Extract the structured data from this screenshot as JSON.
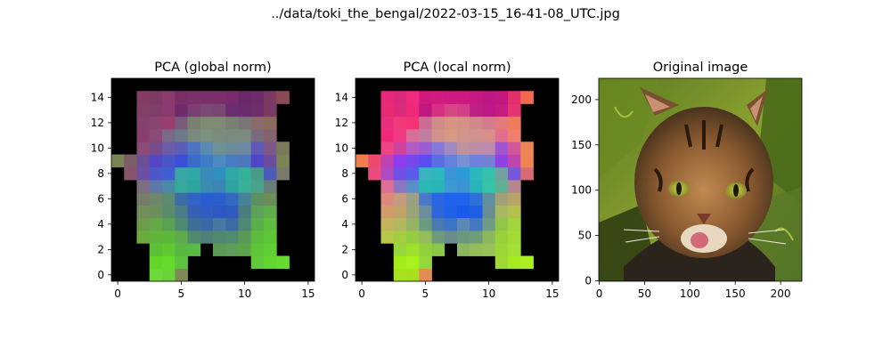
{
  "suptitle": "../data/toki_the_bengal/2022-03-15_16-41-08_UTC.jpg",
  "chart_data": [
    {
      "type": "heatmap",
      "title": "PCA (global norm)",
      "grid": false,
      "xlim": [
        -0.5,
        15.5
      ],
      "ylim": [
        15.5,
        -0.5
      ],
      "xticks": [
        0,
        5,
        10,
        15
      ],
      "yticks": [
        0,
        2,
        4,
        6,
        8,
        10,
        12,
        14
      ],
      "background_color": "#000000",
      "cells": [
        {
          "row": 1,
          "cols": [
            3,
            4,
            5
          ],
          "colors": [
            "#6fd83b",
            "#6ad33a",
            "#7d8a55"
          ]
        },
        {
          "row": 2,
          "cols": [
            3,
            4,
            5,
            11,
            12,
            13
          ],
          "colors": [
            "#63d52b",
            "#66d92d",
            "#5bc33f",
            "#62c93b",
            "#64d42e",
            "#68da2e"
          ]
        },
        {
          "row": 3,
          "cols": [
            3,
            4,
            5,
            6,
            8,
            9,
            10,
            11,
            12
          ],
          "colors": [
            "#5cc035",
            "#60c82f",
            "#58b840",
            "#5aba46",
            "#5a9a55",
            "#5f9e58",
            "#5ca448",
            "#5cc638",
            "#60cf35"
          ]
        },
        {
          "row": 4,
          "cols": [
            2,
            3,
            4,
            5,
            6,
            7,
            8,
            9,
            10,
            11,
            12
          ],
          "colors": [
            "#6bab3d",
            "#63b43a",
            "#5bb83b",
            "#5eaa4d",
            "#4f8a6a",
            "#507f78",
            "#4e8870",
            "#4e8d6c",
            "#5a9a59",
            "#5bbc3d",
            "#5fc737"
          ]
        },
        {
          "row": 5,
          "cols": [
            2,
            3,
            4,
            5,
            6,
            7,
            8,
            9,
            10,
            11,
            12
          ],
          "colors": [
            "#6a9c4c",
            "#65a84a",
            "#5aa153",
            "#4d8a72",
            "#3f6e95",
            "#396aa5",
            "#4878a0",
            "#3b6aa4",
            "#4e8874",
            "#59b04a",
            "#5fbf3d"
          ]
        },
        {
          "row": 6,
          "cols": [
            2,
            3,
            4,
            5,
            6,
            7,
            8,
            9,
            10,
            11,
            12
          ],
          "colors": [
            "#748d5c",
            "#6a8f5a",
            "#5a8b6b",
            "#4c7c86",
            "#3760b0",
            "#2f5ec2",
            "#2d58c4",
            "#2f5bbd",
            "#4b7c80",
            "#5da059",
            "#5fae4b"
          ]
        },
        {
          "row": 7,
          "cols": [
            2,
            3,
            4,
            5,
            6,
            7,
            8,
            9,
            10,
            11,
            12
          ],
          "colors": [
            "#787a6b",
            "#6e876a",
            "#5d8a72",
            "#3c6da5",
            "#3163c4",
            "#285ecf",
            "#2a5fcc",
            "#3469bd",
            "#46839a",
            "#5c9063",
            "#6c8c58"
          ]
        },
        {
          "row": 8,
          "cols": [
            2,
            3,
            4,
            5,
            6,
            7,
            8,
            9,
            10,
            11,
            12
          ],
          "colors": [
            "#7a6e80",
            "#5a79a6",
            "#4a8aa8",
            "#36a89a",
            "#2fa39e",
            "#3a8cb0",
            "#3b85b5",
            "#2ea4a2",
            "#39b198",
            "#4aa28a",
            "#667e78"
          ]
        },
        {
          "row": 9,
          "cols": [
            1,
            2,
            3,
            4,
            5,
            6,
            7,
            8,
            9,
            10,
            11,
            12,
            13
          ],
          "colors": [
            "#86546c",
            "#6a4fa5",
            "#4c58c7",
            "#3f5fd0",
            "#38a4a3",
            "#2fa7a4",
            "#3a8ab9",
            "#2f8fbf",
            "#2ca9a6",
            "#34b09b",
            "#4a9a8a",
            "#4c5ab8",
            "#7a7a6c"
          ]
        },
        {
          "row": 10,
          "cols": [
            0,
            1,
            2,
            3,
            4,
            5,
            6,
            7,
            8,
            9,
            10,
            11,
            12,
            13
          ],
          "colors": [
            "#7a8452",
            "#7d5e68",
            "#6b4f96",
            "#5347c7",
            "#4a55c8",
            "#3a4fd7",
            "#3a6cc6",
            "#3f7bc6",
            "#4c8ac0",
            "#477cc3",
            "#4d79bc",
            "#4f45c7",
            "#6c4c9c",
            "#7a8454"
          ]
        },
        {
          "row": 11,
          "cols": [
            2,
            3,
            4,
            5,
            6,
            7,
            8,
            9,
            10,
            11,
            12,
            13
          ],
          "colors": [
            "#8a4c75",
            "#7a4b8b",
            "#6b5da6",
            "#5a5cb8",
            "#4d74c0",
            "#5a8ab0",
            "#6e9294",
            "#6c8b98",
            "#6d88a0",
            "#5f58b6",
            "#7d5885",
            "#7a7a5a"
          ]
        },
        {
          "row": 12,
          "cols": [
            2,
            3,
            4,
            5,
            6,
            7,
            8,
            9,
            10,
            11,
            12
          ],
          "colors": [
            "#893e6e",
            "#8a4a7a",
            "#7a6a8a",
            "#6c7a8a",
            "#7a8a80",
            "#7a9080",
            "#7a8c7e",
            "#7a8a80",
            "#7a8a80",
            "#7a6a7e",
            "#856070"
          ]
        },
        {
          "row": 13,
          "cols": [
            2,
            3,
            4,
            5,
            6,
            7,
            8,
            9,
            10,
            11,
            12
          ],
          "colors": [
            "#86406e",
            "#8a466e",
            "#9a3e6e",
            "#7a5a7a",
            "#7a8070",
            "#808a70",
            "#7f8a72",
            "#7a8070",
            "#7a7478",
            "#8a6a6a",
            "#8a6a5a"
          ]
        },
        {
          "row": 14,
          "cols": [
            2,
            3,
            4,
            5,
            6,
            7,
            8,
            9,
            10,
            11,
            12
          ],
          "colors": [
            "#833e66",
            "#7e3e68",
            "#8a3a6e",
            "#6e2a6a",
            "#7a3e70",
            "#7a4a74",
            "#7a4672",
            "#6a2e70",
            "#6a2a6e",
            "#6e2e6c",
            "#7a3a64"
          ]
        },
        {
          "row": 15,
          "cols": [
            2,
            3,
            4,
            5,
            6,
            7,
            8,
            9,
            10,
            11,
            12,
            13
          ],
          "colors": [
            "#843a64",
            "#7e3a66",
            "#8a3a6c",
            "#7a2e68",
            "#7a3068",
            "#7a2e6a",
            "#7a2e6a",
            "#7a2a6c",
            "#6a2a6a",
            "#6e2a6a",
            "#7a3a62",
            "#8a4a56"
          ]
        }
      ]
    },
    {
      "type": "heatmap",
      "title": "PCA (local norm)",
      "grid": false,
      "xlim": [
        -0.5,
        15.5
      ],
      "ylim": [
        15.5,
        -0.5
      ],
      "xticks": [
        0,
        5,
        10,
        15
      ],
      "yticks": [
        0,
        2,
        4,
        6,
        8,
        10,
        12,
        14
      ],
      "background_color": "#000000",
      "cells": [
        {
          "row": 1,
          "cols": [
            3,
            4,
            5
          ],
          "colors": [
            "#a6e21e",
            "#a8e020",
            "#e48a52"
          ]
        },
        {
          "row": 2,
          "cols": [
            3,
            4,
            5,
            11,
            12,
            13
          ],
          "colors": [
            "#a2ec1c",
            "#a8f01e",
            "#96d83a",
            "#a2d836",
            "#a6ea20",
            "#a8f022"
          ]
        },
        {
          "row": 3,
          "cols": [
            3,
            4,
            5,
            6,
            8,
            9,
            10,
            11,
            12
          ],
          "colors": [
            "#96d83a",
            "#a0e02a",
            "#92d03e",
            "#8cc846",
            "#8ab85a",
            "#96bc5a",
            "#98c258",
            "#9ad83a",
            "#a2e034"
          ]
        },
        {
          "row": 4,
          "cols": [
            2,
            3,
            4,
            5,
            6,
            7,
            8,
            9,
            10,
            11,
            12
          ],
          "colors": [
            "#b8c84a",
            "#a6cc42",
            "#96cc44",
            "#96bc5a",
            "#6e9c7a",
            "#6a8c8c",
            "#6a9880",
            "#6e9e78",
            "#8ab85a",
            "#9ad03c",
            "#a4dc34"
          ]
        },
        {
          "row": 5,
          "cols": [
            2,
            3,
            4,
            5,
            6,
            7,
            8,
            9,
            10,
            11,
            12
          ],
          "colors": [
            "#c2b458",
            "#b2b860",
            "#96b264",
            "#6a9c82",
            "#4a7ab0",
            "#3c74c6",
            "#5c88b4",
            "#4478c2",
            "#6e9c84",
            "#92c64a",
            "#a2d43c"
          ]
        },
        {
          "row": 6,
          "cols": [
            2,
            3,
            4,
            5,
            6,
            7,
            8,
            9,
            10,
            11,
            12
          ],
          "colors": [
            "#d09a6a",
            "#c0a26a",
            "#9aa478",
            "#6a8c9c",
            "#2e66d8",
            "#1e62e8",
            "#1a5ae8",
            "#1e5ee2",
            "#6a8c94",
            "#a6b860",
            "#b4c04e"
          ]
        },
        {
          "row": 7,
          "cols": [
            2,
            3,
            4,
            5,
            6,
            7,
            8,
            9,
            10,
            11,
            12
          ],
          "colors": [
            "#dc8a7e",
            "#c69a7e",
            "#9aa084",
            "#4a78c8",
            "#2a66e2",
            "#1e62ee",
            "#2064ea",
            "#2e70d8",
            "#60909e",
            "#a2a076",
            "#b8a466"
          ]
        },
        {
          "row": 8,
          "cols": [
            2,
            3,
            4,
            5,
            6,
            7,
            8,
            9,
            10,
            11,
            12
          ],
          "colors": [
            "#de6e94",
            "#8a76c2",
            "#5a8cc6",
            "#2ab8b4",
            "#28b4b8",
            "#3a9ad0",
            "#3c92d2",
            "#28b4b8",
            "#34c4a8",
            "#62b094",
            "#b4868e"
          ]
        },
        {
          "row": 9,
          "cols": [
            1,
            2,
            3,
            4,
            5,
            6,
            7,
            8,
            9,
            10,
            11,
            12,
            13
          ],
          "colors": [
            "#ec4a7e",
            "#b04ac2",
            "#7050e2",
            "#5a5cea",
            "#3ab4bc",
            "#2cb8bc",
            "#3a94d6",
            "#2c9ad6",
            "#2ab8bc",
            "#36c2aa",
            "#74a09e",
            "#7458d8",
            "#d86a74"
          ]
        },
        {
          "row": 10,
          "cols": [
            0,
            1,
            2,
            3,
            4,
            5,
            6,
            7,
            8,
            9,
            10,
            11,
            12,
            13
          ],
          "colors": [
            "#f07e4a",
            "#ee4a70",
            "#c042b0",
            "#8e3cee",
            "#7448ea",
            "#5a4cf2",
            "#5a6ee2",
            "#6680e0",
            "#7a90d4",
            "#7080dc",
            "#7680d2",
            "#9242e2",
            "#c044ae",
            "#ee8450"
          ]
        },
        {
          "row": 11,
          "cols": [
            2,
            3,
            4,
            5,
            6,
            7,
            8,
            9,
            10,
            11,
            12,
            13
          ],
          "colors": [
            "#ee4484",
            "#d0409e",
            "#b05cc2",
            "#9a5cd2",
            "#8678d6",
            "#a28ac0",
            "#c0929e",
            "#bc8ea6",
            "#be8ab0",
            "#a054ce",
            "#d2569a",
            "#ec8456"
          ]
        },
        {
          "row": 12,
          "cols": [
            2,
            3,
            4,
            5,
            6,
            7,
            8,
            9,
            10,
            11,
            12
          ],
          "colors": [
            "#f02a78",
            "#ee3a84",
            "#d86e9a",
            "#c07e9e",
            "#d2928a",
            "#d49a86",
            "#d0948a",
            "#d0928c",
            "#d6908a",
            "#e46e8e",
            "#f07e6e"
          ]
        },
        {
          "row": 13,
          "cols": [
            2,
            3,
            4,
            5,
            6,
            7,
            8,
            9,
            10,
            11,
            12
          ],
          "colors": [
            "#ec2e7e",
            "#f03a78",
            "#f43274",
            "#cc6e94",
            "#d08c86",
            "#d89482",
            "#d49284",
            "#d0888a",
            "#d47c8c",
            "#e67a78",
            "#ec7e5e"
          ]
        },
        {
          "row": 14,
          "cols": [
            2,
            3,
            4,
            5,
            6,
            7,
            8,
            9,
            10,
            11,
            12
          ],
          "colors": [
            "#e82a74",
            "#dc2a7a",
            "#f02a7a",
            "#c0187e",
            "#d82e84",
            "#d44686",
            "#d43e84",
            "#be1e88",
            "#be1886",
            "#c41c82",
            "#e63470"
          ]
        },
        {
          "row": 15,
          "cols": [
            2,
            3,
            4,
            5,
            6,
            7,
            8,
            9,
            10,
            11,
            12,
            13
          ],
          "colors": [
            "#e8267a",
            "#dc287c",
            "#f02a7c",
            "#d0187e",
            "#d01c7e",
            "#cc1a80",
            "#cc1a80",
            "#c81884",
            "#bc1884",
            "#c2187e",
            "#e2306c",
            "#f06a50"
          ]
        }
      ]
    },
    {
      "type": "image",
      "title": "Original image",
      "grid": false,
      "xlim": [
        -0.5,
        223.5
      ],
      "ylim": [
        223.5,
        -0.5
      ],
      "xticks": [
        0,
        50,
        100,
        150,
        200
      ],
      "yticks": [
        0,
        50,
        100,
        150,
        200
      ]
    }
  ]
}
